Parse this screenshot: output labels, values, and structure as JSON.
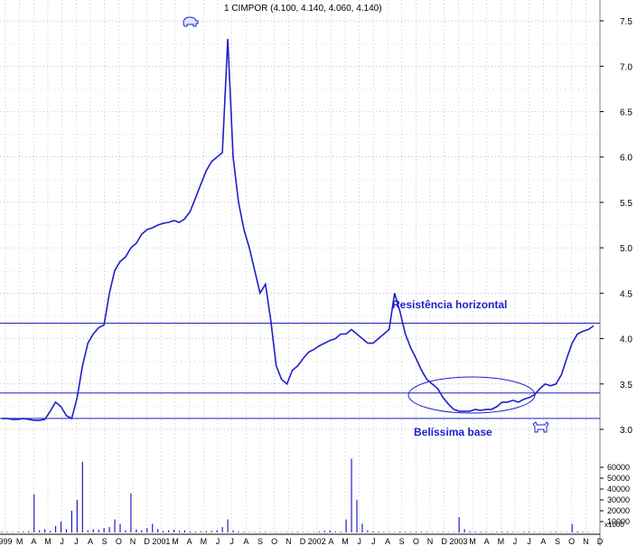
{
  "chart_data": {
    "type": "line",
    "title": "1 CIMPOR (4.100, 4.140, 4.060, 4.140)",
    "ylim": [
      2.95,
      7.65
    ],
    "y_ticks": [
      "3.0",
      "3.5",
      "4.0",
      "4.5",
      "5.0",
      "5.5",
      "6.0",
      "6.5",
      "7.0",
      "7.5"
    ],
    "grid": true,
    "volume_ticks": [
      "60000",
      "50000",
      "40000",
      "30000",
      "20000",
      "10000"
    ],
    "volume_unit": "x1000",
    "x_labels": [
      "999",
      "M",
      "A",
      "M",
      "J",
      "J",
      "A",
      "S",
      "O",
      "N",
      "D",
      "2001",
      "M",
      "A",
      "M",
      "J",
      "J",
      "A",
      "S",
      "O",
      "N",
      "D",
      "2002",
      "A",
      "M",
      "J",
      "J",
      "A",
      "S",
      "O",
      "N",
      "D",
      "2003",
      "M",
      "A",
      "M",
      "J",
      "J",
      "A",
      "S",
      "O",
      "N",
      "D"
    ],
    "series": [
      {
        "name": "CIMPOR",
        "color": "#1f1fc8",
        "values": [
          3.12,
          3.12,
          3.11,
          3.11,
          3.12,
          3.11,
          3.1,
          3.1,
          3.11,
          3.2,
          3.3,
          3.25,
          3.15,
          3.12,
          3.35,
          3.7,
          3.95,
          4.05,
          4.12,
          4.15,
          4.5,
          4.75,
          4.85,
          4.9,
          5.0,
          5.05,
          5.15,
          5.2,
          5.22,
          5.25,
          5.27,
          5.28,
          5.3,
          5.28,
          5.32,
          5.4,
          5.55,
          5.7,
          5.85,
          5.95,
          6.0,
          6.05,
          7.3,
          6.0,
          5.5,
          5.2,
          5.0,
          4.75,
          4.5,
          4.6,
          4.2,
          3.7,
          3.55,
          3.5,
          3.65,
          3.7,
          3.78,
          3.85,
          3.88,
          3.92,
          3.95,
          3.98,
          4.0,
          4.05,
          4.05,
          4.1,
          4.05,
          4.0,
          3.95,
          3.95,
          4.0,
          4.05,
          4.1,
          4.5,
          4.3,
          4.05,
          3.9,
          3.78,
          3.65,
          3.55,
          3.5,
          3.45,
          3.35,
          3.28,
          3.22,
          3.2,
          3.2,
          3.2,
          3.22,
          3.21,
          3.22,
          3.22,
          3.25,
          3.3,
          3.3,
          3.32,
          3.3,
          3.33,
          3.35,
          3.38,
          3.45,
          3.5,
          3.48,
          3.5,
          3.6,
          3.78,
          3.95,
          4.05,
          4.08,
          4.1,
          4.14
        ]
      }
    ],
    "volume_values": [
      800,
      600,
      500,
      700,
      900,
      1200,
      35000,
      2000,
      3000,
      1500,
      6000,
      10000,
      3000,
      20000,
      30000,
      65000,
      2000,
      3000,
      2500,
      4000,
      5000,
      12000,
      8000,
      2000,
      36000,
      3000,
      2000,
      4000,
      8000,
      3000,
      1500,
      2000,
      2500,
      1500,
      2000,
      1000,
      800,
      900,
      1200,
      1500,
      2000,
      5000,
      12000,
      2000,
      800,
      600,
      500,
      400,
      500,
      600,
      400,
      350,
      300,
      400,
      500,
      600,
      350,
      300,
      500,
      800,
      1500,
      2000,
      1000,
      800,
      12000,
      68000,
      30000,
      8000,
      2000,
      1000,
      800,
      600,
      500,
      400,
      800,
      600,
      500,
      600,
      700,
      500,
      400,
      300,
      500,
      400,
      300,
      14000,
      3000,
      1000,
      800,
      600,
      500,
      400,
      600,
      800,
      700,
      500,
      400,
      600,
      800,
      500,
      400,
      300,
      500,
      600,
      400,
      300,
      8000,
      1000,
      500,
      400,
      300
    ],
    "annotations": {
      "resistance_label": "Resistência horizontal",
      "base_label": "Belíssima base",
      "resistance_level": 4.17,
      "support_level": 3.4,
      "base_level": 3.12
    }
  }
}
